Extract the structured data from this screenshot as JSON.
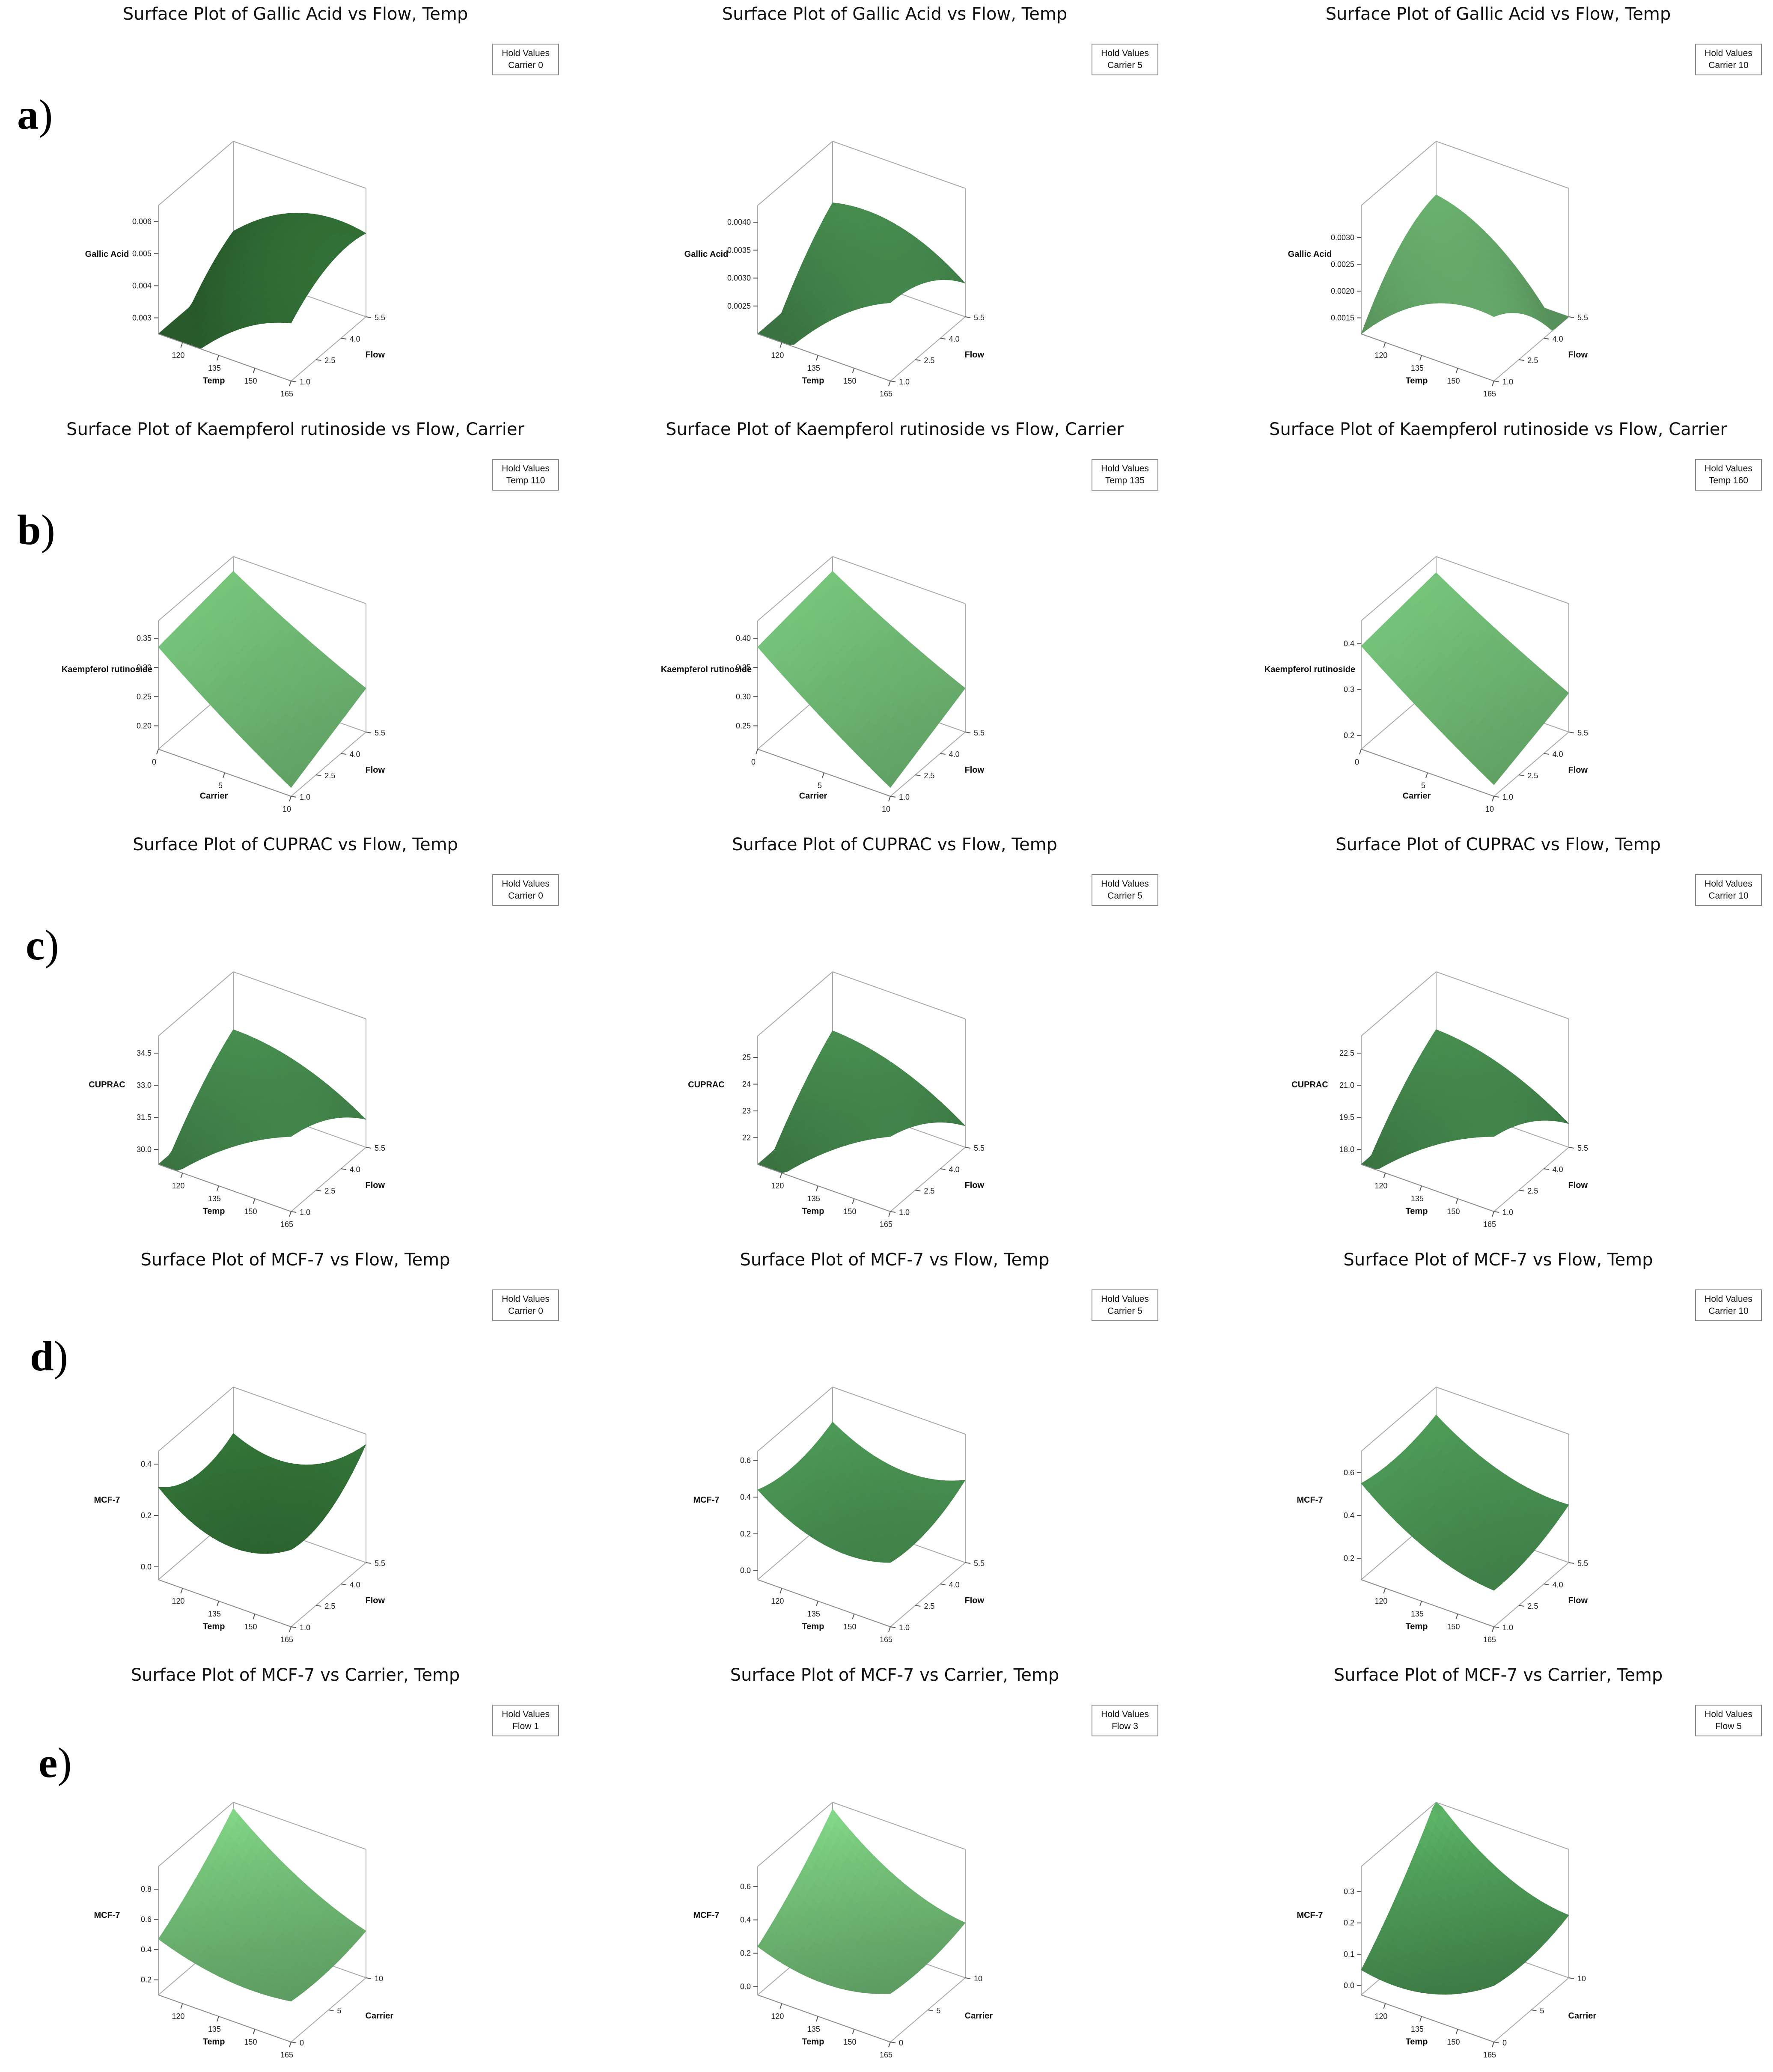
{
  "figure": {
    "panel_labels": [
      "a",
      "b",
      "c",
      "d",
      "e"
    ],
    "label_paren": ")",
    "hold_header": "Hold Values"
  },
  "chart_data": [
    {
      "id": "a1",
      "type": "surface",
      "row": 0,
      "title": "Surface Plot of Gallic Acid vs Flow, Temp",
      "hold": {
        "var": "Carrier",
        "value": "0"
      },
      "z_label": "Gallic Acid",
      "x_label": "Temp",
      "y_label": "Flow",
      "x_ticks": [
        "120",
        "135",
        "150",
        "165"
      ],
      "y_ticks": [
        "1.0",
        "2.5",
        "4.0",
        "5.5"
      ],
      "z_ticks": [
        "0.003",
        "0.004",
        "0.005",
        "0.006"
      ],
      "x_range": [
        110,
        165
      ],
      "y_range": [
        1,
        5.5
      ],
      "z_range": [
        0.0025,
        0.0065
      ],
      "coef": {
        "c": 0.0045,
        "a": 0.0012,
        "b": 0.0009,
        "aa": -0.0006,
        "bb": -0.0004,
        "ab": -0.0005
      },
      "tone": "dark"
    },
    {
      "id": "a2",
      "type": "surface",
      "row": 0,
      "title": "Surface Plot of Gallic Acid vs Flow, Temp",
      "hold": {
        "var": "Carrier",
        "value": "5"
      },
      "z_label": "Gallic Acid",
      "x_label": "Temp",
      "y_label": "Flow",
      "x_ticks": [
        "120",
        "135",
        "150",
        "165"
      ],
      "y_ticks": [
        "1.0",
        "2.5",
        "4.0",
        "5.5"
      ],
      "z_ticks": [
        "0.0025",
        "0.0030",
        "0.0035",
        "0.0040"
      ],
      "x_range": [
        110,
        165
      ],
      "y_range": [
        1,
        5.5
      ],
      "z_range": [
        0.002,
        0.0043
      ],
      "coef": {
        "c": 0.0031,
        "a": 0.0004,
        "b": 0.0003,
        "aa": -0.0003,
        "bb": -0.0002,
        "ab": -0.0007
      },
      "tone": "mid"
    },
    {
      "id": "a3",
      "type": "surface",
      "row": 0,
      "title": "Surface Plot of Gallic Acid vs Flow, Temp",
      "hold": {
        "var": "Carrier",
        "value": "10"
      },
      "z_label": "Gallic Acid",
      "x_label": "Temp",
      "y_label": "Flow",
      "x_ticks": [
        "120",
        "135",
        "150",
        "165"
      ],
      "y_ticks": [
        "1.0",
        "2.5",
        "4.0",
        "5.5"
      ],
      "z_ticks": [
        "0.0015",
        "0.0020",
        "0.0025",
        "0.0030"
      ],
      "x_range": [
        110,
        165
      ],
      "y_range": [
        1,
        5.5
      ],
      "z_range": [
        0.0012,
        0.0036
      ],
      "coef": {
        "c": 0.0024,
        "a": -0.0002,
        "b": -0.0001,
        "aa": -0.0004,
        "bb": -0.0003,
        "ab": -0.0008
      },
      "tone": "light"
    },
    {
      "id": "b1",
      "type": "surface",
      "row": 1,
      "title": "Surface Plot of Kaempferol rutinoside vs Flow, Carrier",
      "hold": {
        "var": "Temp",
        "value": "110"
      },
      "z_label": "Kaempferol rutinoside",
      "x_label": "Carrier",
      "y_label": "Flow",
      "x_ticks": [
        "0",
        "5",
        "10"
      ],
      "y_ticks": [
        "1.0",
        "2.5",
        "4.0",
        "5.5"
      ],
      "z_ticks": [
        "0.20",
        "0.25",
        "0.30",
        "0.35"
      ],
      "x_range": [
        0,
        10
      ],
      "y_range": [
        1,
        5.5
      ],
      "z_range": [
        0.16,
        0.38
      ],
      "coef": {
        "c": 0.27,
        "a": -0.07,
        "b": 0.02,
        "aa": 0.005,
        "bb": 0.0,
        "ab": 0.01
      },
      "tone": "light"
    },
    {
      "id": "b2",
      "type": "surface",
      "row": 1,
      "title": "Surface Plot of Kaempferol rutinoside vs Flow, Carrier",
      "hold": {
        "var": "Temp",
        "value": "135"
      },
      "z_label": "Kaempferol rutinoside",
      "x_label": "Carrier",
      "y_label": "Flow",
      "x_ticks": [
        "0",
        "5",
        "10"
      ],
      "y_ticks": [
        "1.0",
        "2.5",
        "4.0",
        "5.5"
      ],
      "z_ticks": [
        "0.25",
        "0.30",
        "0.35",
        "0.40"
      ],
      "x_range": [
        0,
        10
      ],
      "y_range": [
        1,
        5.5
      ],
      "z_range": [
        0.21,
        0.43
      ],
      "coef": {
        "c": 0.32,
        "a": -0.07,
        "b": 0.02,
        "aa": 0.005,
        "bb": 0.0,
        "ab": 0.01
      },
      "tone": "light"
    },
    {
      "id": "b3",
      "type": "surface",
      "row": 1,
      "title": "Surface Plot of Kaempferol rutinoside vs Flow, Carrier",
      "hold": {
        "var": "Temp",
        "value": "160"
      },
      "z_label": "Kaempferol rutinoside",
      "x_label": "Carrier",
      "y_label": "Flow",
      "x_ticks": [
        "0",
        "5",
        "10"
      ],
      "y_ticks": [
        "1.0",
        "2.5",
        "4.0",
        "5.5"
      ],
      "z_ticks": [
        "0.2",
        "0.3",
        "0.4"
      ],
      "x_range": [
        0,
        10
      ],
      "y_range": [
        1,
        5.5
      ],
      "z_range": [
        0.17,
        0.45
      ],
      "coef": {
        "c": 0.31,
        "a": -0.09,
        "b": 0.02,
        "aa": 0.005,
        "bb": 0.0,
        "ab": 0.01
      },
      "tone": "light"
    },
    {
      "id": "c1",
      "type": "surface",
      "row": 2,
      "title": "Surface Plot of CUPRAC vs Flow, Temp",
      "hold": {
        "var": "Carrier",
        "value": "0"
      },
      "z_label": "CUPRAC",
      "x_label": "Temp",
      "y_label": "Flow",
      "x_ticks": [
        "120",
        "135",
        "150",
        "165"
      ],
      "y_ticks": [
        "1.0",
        "2.5",
        "4.0",
        "5.5"
      ],
      "z_ticks": [
        "30.0",
        "31.5",
        "33.0",
        "34.5"
      ],
      "x_range": [
        110,
        165
      ],
      "y_range": [
        1,
        5.5
      ],
      "z_range": [
        29.3,
        35.3
      ],
      "coef": {
        "c": 32.0,
        "a": 0.6,
        "b": 0.5,
        "aa": -0.5,
        "bb": -0.4,
        "ab": -1.6
      },
      "tone": "mid"
    },
    {
      "id": "c2",
      "type": "surface",
      "row": 2,
      "title": "Surface Plot of CUPRAC vs Flow, Temp",
      "hold": {
        "var": "Carrier",
        "value": "5"
      },
      "z_label": "CUPRAC",
      "x_label": "Temp",
      "y_label": "Flow",
      "x_ticks": [
        "120",
        "135",
        "150",
        "165"
      ],
      "y_ticks": [
        "1.0",
        "2.5",
        "4.0",
        "5.5"
      ],
      "z_ticks": [
        "22",
        "23",
        "24",
        "25"
      ],
      "x_range": [
        110,
        165
      ],
      "y_range": [
        1,
        5.5
      ],
      "z_range": [
        21,
        25.8
      ],
      "coef": {
        "c": 23.0,
        "a": 0.5,
        "b": 0.4,
        "aa": -0.4,
        "bb": -0.3,
        "ab": -1.4
      },
      "tone": "mid"
    },
    {
      "id": "c3",
      "type": "surface",
      "row": 2,
      "title": "Surface Plot of CUPRAC vs Flow, Temp",
      "hold": {
        "var": "Carrier",
        "value": "10"
      },
      "z_label": "CUPRAC",
      "x_label": "Temp",
      "y_label": "Flow",
      "x_ticks": [
        "120",
        "135",
        "150",
        "165"
      ],
      "y_ticks": [
        "1.0",
        "2.5",
        "4.0",
        "5.5"
      ],
      "z_ticks": [
        "18.0",
        "19.5",
        "21.0",
        "22.5"
      ],
      "x_range": [
        110,
        165
      ],
      "y_range": [
        1,
        5.5
      ],
      "z_range": [
        17.3,
        23.3
      ],
      "coef": {
        "c": 20.0,
        "a": 0.5,
        "b": 0.4,
        "aa": -0.5,
        "bb": -0.4,
        "ab": -1.6
      },
      "tone": "mid"
    },
    {
      "id": "d1",
      "type": "surface",
      "row": 3,
      "title": "Surface Plot of MCF-7 vs Flow, Temp",
      "hold": {
        "var": "Carrier",
        "value": "0"
      },
      "z_label": "MCF-7",
      "x_label": "Temp",
      "y_label": "Flow",
      "x_ticks": [
        "120",
        "135",
        "150",
        "165"
      ],
      "y_ticks": [
        "1.0",
        "2.5",
        "4.0",
        "5.5"
      ],
      "z_ticks": [
        "0.0",
        "0.2",
        "0.4"
      ],
      "x_range": [
        110,
        165
      ],
      "y_range": [
        1,
        5.5
      ],
      "z_range": [
        -0.05,
        0.45
      ],
      "coef": {
        "c": 0.15,
        "a": 0.02,
        "b": 0.03,
        "aa": 0.1,
        "bb": 0.06,
        "ab": 0.05
      },
      "tone": "dark"
    },
    {
      "id": "d2",
      "type": "surface",
      "row": 3,
      "title": "Surface Plot of MCF-7 vs Flow, Temp",
      "hold": {
        "var": "Carrier",
        "value": "5"
      },
      "z_label": "MCF-7",
      "x_label": "Temp",
      "y_label": "Flow",
      "x_ticks": [
        "120",
        "135",
        "150",
        "165"
      ],
      "y_ticks": [
        "1.0",
        "2.5",
        "4.0",
        "5.5"
      ],
      "z_ticks": [
        "0.0",
        "0.2",
        "0.4",
        "0.6"
      ],
      "x_range": [
        110,
        165
      ],
      "y_range": [
        1,
        5.5
      ],
      "z_range": [
        -0.05,
        0.65
      ],
      "coef": {
        "c": 0.25,
        "a": -0.05,
        "b": 0.03,
        "aa": 0.1,
        "bb": 0.05,
        "ab": 0.02
      },
      "tone": "mid"
    },
    {
      "id": "d3",
      "type": "surface",
      "row": 3,
      "title": "Surface Plot of MCF-7 vs Flow, Temp",
      "hold": {
        "var": "Carrier",
        "value": "10"
      },
      "z_label": "MCF-7",
      "x_label": "Temp",
      "y_label": "Flow",
      "x_ticks": [
        "120",
        "135",
        "150",
        "165"
      ],
      "y_ticks": [
        "1.0",
        "2.5",
        "4.0",
        "5.5"
      ],
      "z_ticks": [
        "0.2",
        "0.4",
        "0.6"
      ],
      "x_range": [
        110,
        165
      ],
      "y_range": [
        1,
        5.5
      ],
      "z_range": [
        0.1,
        0.7
      ],
      "coef": {
        "c": 0.35,
        "a": -0.12,
        "b": 0.03,
        "aa": 0.06,
        "bb": 0.03,
        "ab": 0.02
      },
      "tone": "mid"
    },
    {
      "id": "e1",
      "type": "surface",
      "row": 4,
      "title": "Surface Plot of MCF-7 vs Carrier, Temp",
      "hold": {
        "var": "Flow",
        "value": "1"
      },
      "z_label": "MCF-7",
      "x_label": "Temp",
      "y_label": "Carrier",
      "x_ticks": [
        "120",
        "135",
        "150",
        "165"
      ],
      "y_ticks": [
        "0",
        "5",
        "10"
      ],
      "z_ticks": [
        "0.2",
        "0.4",
        "0.6",
        "0.8"
      ],
      "x_range": [
        110,
        165
      ],
      "y_range": [
        0,
        10
      ],
      "z_range": [
        0.1,
        0.95
      ],
      "coef": {
        "c": 0.45,
        "a": -0.15,
        "b": 0.12,
        "aa": 0.06,
        "bb": 0.03,
        "ab": -0.1
      },
      "tone": "light"
    },
    {
      "id": "e2",
      "type": "surface",
      "row": 4,
      "title": "Surface Plot of MCF-7 vs Carrier, Temp",
      "hold": {
        "var": "Flow",
        "value": "3"
      },
      "z_label": "MCF-7",
      "x_label": "Temp",
      "y_label": "Carrier",
      "x_ticks": [
        "120",
        "135",
        "150",
        "165"
      ],
      "y_ticks": [
        "0",
        "5",
        "10"
      ],
      "z_ticks": [
        "0.0",
        "0.2",
        "0.4",
        "0.6"
      ],
      "x_range": [
        110,
        165
      ],
      "y_range": [
        0,
        10
      ],
      "z_range": [
        -0.05,
        0.72
      ],
      "coef": {
        "c": 0.25,
        "a": -0.1,
        "b": 0.12,
        "aa": 0.08,
        "bb": 0.03,
        "ab": -0.1
      },
      "tone": "light"
    },
    {
      "id": "e3",
      "type": "surface",
      "row": 4,
      "title": "Surface Plot of MCF-7 vs Carrier, Temp",
      "hold": {
        "var": "Flow",
        "value": "5"
      },
      "z_label": "MCF-7",
      "x_label": "Temp",
      "y_label": "Carrier",
      "x_ticks": [
        "120",
        "135",
        "150",
        "165"
      ],
      "y_ticks": [
        "0",
        "5",
        "10"
      ],
      "z_ticks": [
        "0.0",
        "0.1",
        "0.2",
        "0.3"
      ],
      "x_range": [
        110,
        165
      ],
      "y_range": [
        0,
        10
      ],
      "z_range": [
        -0.03,
        0.38
      ],
      "coef": {
        "c": 0.12,
        "a": -0.03,
        "b": 0.09,
        "aa": 0.05,
        "bb": 0.02,
        "ab": -0.08
      },
      "tone": "mid"
    }
  ]
}
